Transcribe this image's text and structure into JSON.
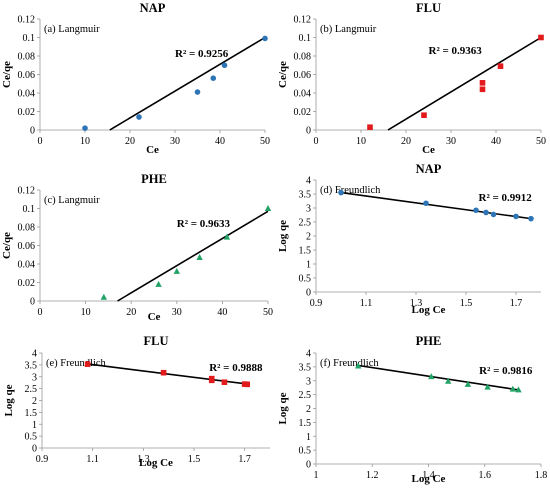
{
  "chart_data": [
    {
      "type": "scatter",
      "title": "NAP",
      "panel_label": "(a) Langmuir",
      "xlabel": "Ce",
      "ylabel": "Ce/qe",
      "xlim": [
        0,
        50
      ],
      "ylim": [
        0,
        0.12
      ],
      "xticks": [
        "0",
        "10",
        "20",
        "30",
        "40",
        "50"
      ],
      "yticks": [
        "0",
        "0.02",
        "0.04",
        "0.06",
        "0.08",
        "0.1",
        "0.12"
      ],
      "xtick_values": [
        0,
        10,
        20,
        30,
        40,
        50
      ],
      "ytick_values": [
        0,
        0.02,
        0.04,
        0.06,
        0.08,
        0.1,
        0.12
      ],
      "marker": "circle",
      "color": "#2e75b6",
      "x": [
        10,
        22,
        35,
        38.5,
        41,
        50
      ],
      "y": [
        0.002,
        0.014,
        0.041,
        0.056,
        0.07,
        0.099
      ],
      "trendline": {
        "x": [
          15.5,
          50
        ],
        "y": [
          0,
          0.1
        ]
      },
      "r2_text": "R² = 0.9256",
      "r2_pos": [
        30,
        0.079
      ]
    },
    {
      "type": "scatter",
      "title": "FLU",
      "panel_label": "(b) Langmuir",
      "xlabel": "Ce",
      "ylabel": "Ce/qe",
      "xlim": [
        0,
        50
      ],
      "ylim": [
        0,
        0.12
      ],
      "xticks": [
        "0",
        "10",
        "20",
        "30",
        "40",
        "50"
      ],
      "yticks": [
        "0",
        "0.02",
        "0.04",
        "0.06",
        "0.08",
        "0.1",
        "0.12"
      ],
      "xtick_values": [
        0,
        10,
        20,
        30,
        40,
        50
      ],
      "ytick_values": [
        0,
        0.02,
        0.04,
        0.06,
        0.08,
        0.1,
        0.12
      ],
      "marker": "square",
      "color": "#e31a1c",
      "x": [
        12,
        24,
        37,
        37,
        41,
        50
      ],
      "y": [
        0.003,
        0.016,
        0.044,
        0.051,
        0.069,
        0.1
      ],
      "trendline": {
        "x": [
          16,
          50
        ],
        "y": [
          0,
          0.1
        ]
      },
      "r2_text": "R² = 0.9363",
      "r2_pos": [
        25,
        0.082
      ]
    },
    {
      "type": "scatter",
      "title": "PHE",
      "panel_label": "(c) Langmuir",
      "xlabel": "Ce",
      "ylabel": "Ce/qe",
      "xlim": [
        0,
        50
      ],
      "ylim": [
        0,
        0.12
      ],
      "xticks": [
        "0",
        "10",
        "20",
        "30",
        "40",
        "50"
      ],
      "yticks": [
        "0",
        "0.02",
        "0.04",
        "0.06",
        "0.08",
        "0.1",
        "0.12"
      ],
      "xtick_values": [
        0,
        10,
        20,
        30,
        40,
        50
      ],
      "ytick_values": [
        0,
        0.02,
        0.04,
        0.06,
        0.08,
        0.1,
        0.12
      ],
      "marker": "triangle",
      "color": "#21a366",
      "x": [
        14,
        26,
        30,
        35,
        41,
        50
      ],
      "y": [
        0.004,
        0.018,
        0.032,
        0.047,
        0.069,
        0.1
      ],
      "trendline": {
        "x": [
          17,
          50
        ],
        "y": [
          0,
          0.097
        ]
      },
      "r2_text": "R² = 0.9633",
      "r2_pos": [
        30,
        0.08
      ]
    },
    {
      "type": "scatter",
      "title": "NAP",
      "panel_label": "(d) Freundlich",
      "xlabel": "Log Ce",
      "ylabel": "Log qe",
      "xlim": [
        0.9,
        1.8
      ],
      "ylim": [
        0,
        4
      ],
      "xticks": [
        "0.9",
        "1.1",
        "1.3",
        "1.5",
        "1.7"
      ],
      "yticks": [
        "0",
        "0.5",
        "1",
        "1.5",
        "2",
        "2.5",
        "3",
        "3.5",
        "4"
      ],
      "xtick_values": [
        0.9,
        1.1,
        1.3,
        1.5,
        1.7
      ],
      "ytick_values": [
        0,
        0.5,
        1,
        1.5,
        2,
        2.5,
        3,
        3.5,
        4
      ],
      "marker": "circle",
      "color": "#2e75b6",
      "x": [
        1.0,
        1.34,
        1.54,
        1.58,
        1.61,
        1.7,
        1.76
      ],
      "y": [
        3.55,
        3.17,
        2.92,
        2.84,
        2.77,
        2.7,
        2.62
      ],
      "trendline": {
        "x": [
          1.0,
          1.76
        ],
        "y": [
          3.55,
          2.62
        ]
      },
      "r2_text": "R² = 0.9912",
      "r2_pos": [
        1.55,
        3.25
      ]
    },
    {
      "type": "scatter",
      "title": "FLU",
      "panel_label": "(e) Freundlich",
      "xlabel": "Log Ce",
      "ylabel": "Log qe",
      "xlim": [
        0.9,
        1.8
      ],
      "ylim": [
        0,
        4
      ],
      "xticks": [
        "0.9",
        "1.1",
        "1.3",
        "1.5",
        "1.7"
      ],
      "yticks": [
        "0",
        "0.5",
        "1",
        "1.5",
        "2",
        "2.5",
        "3",
        "3.5",
        "4"
      ],
      "xtick_values": [
        0.9,
        1.1,
        1.3,
        1.5,
        1.7
      ],
      "ytick_values": [
        0,
        0.5,
        1,
        1.5,
        2,
        2.5,
        3,
        3.5,
        4
      ],
      "marker": "square",
      "color": "#e31a1c",
      "x": [
        1.08,
        1.38,
        1.57,
        1.57,
        1.62,
        1.7,
        1.71
      ],
      "y": [
        3.53,
        3.17,
        2.92,
        2.85,
        2.77,
        2.69,
        2.68
      ],
      "trendline": {
        "x": [
          1.08,
          1.72
        ],
        "y": [
          3.54,
          2.68
        ]
      },
      "r2_text": "R² = 0.9888",
      "r2_pos": [
        1.56,
        3.25
      ]
    },
    {
      "type": "scatter",
      "title": "PHE",
      "panel_label": "(f) Freundlich",
      "xlabel": "Log Ce",
      "ylabel": "Log qe",
      "xlim": [
        1,
        1.8
      ],
      "ylim": [
        0,
        4
      ],
      "xticks": [
        "1",
        "1.2",
        "1.4",
        "1.6",
        "1.8"
      ],
      "yticks": [
        "0",
        "0.5",
        "1",
        "1.5",
        "2",
        "2.5",
        "3",
        "3.5",
        "4"
      ],
      "xtick_values": [
        1,
        1.2,
        1.4,
        1.6,
        1.8
      ],
      "ytick_values": [
        0,
        0.5,
        1,
        1.5,
        2,
        2.5,
        3,
        3.5,
        4
      ],
      "marker": "triangle",
      "color": "#21a366",
      "x": [
        1.15,
        1.41,
        1.47,
        1.54,
        1.61,
        1.7,
        1.72
      ],
      "y": [
        3.53,
        3.15,
        2.98,
        2.87,
        2.77,
        2.7,
        2.67
      ],
      "trendline": {
        "x": [
          1.15,
          1.72
        ],
        "y": [
          3.55,
          2.67
        ]
      },
      "r2_text": "R² = 0.9816",
      "r2_pos": [
        1.58,
        3.25
      ]
    }
  ]
}
